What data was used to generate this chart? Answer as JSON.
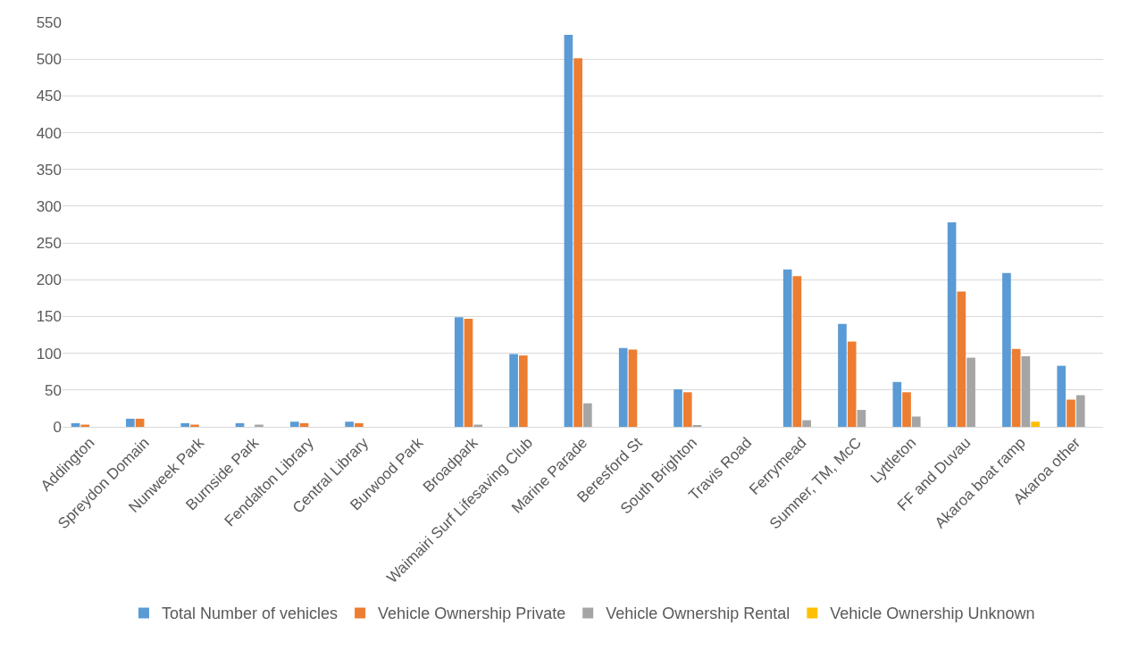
{
  "chart_data": {
    "type": "bar",
    "categories": [
      "Addington",
      "Spreydon Domain",
      "Nunweek Park",
      "Burnside Park",
      "Fendalton Library",
      "Central Library",
      "Burwood Park",
      "Broadpark",
      "Waimairi Surf Lifesaving Club",
      "Marine Parade",
      "Beresford St",
      "South Brighton",
      "Travis Road",
      "Ferrymead",
      "Sumner, TM, McC",
      "Lyttleton",
      "FF and Duvau",
      "Akaroa boat ramp",
      "Akaroa other"
    ],
    "series": [
      {
        "name": "Total Number of vehicles",
        "color": "#5b9bd5",
        "values": [
          5,
          11,
          5,
          5,
          7,
          7,
          0,
          149,
          99,
          533,
          107,
          51,
          0,
          214,
          140,
          61,
          278,
          209,
          83
        ]
      },
      {
        "name": "Vehicle Ownership Private",
        "color": "#ed7d31",
        "values": [
          3,
          11,
          3,
          0,
          5,
          5,
          0,
          147,
          97,
          501,
          105,
          47,
          0,
          205,
          116,
          47,
          184,
          106,
          37
        ]
      },
      {
        "name": "Vehicle Ownership Rental",
        "color": "#a5a5a5",
        "values": [
          0,
          0,
          0,
          3,
          0,
          0,
          0,
          3,
          0,
          32,
          0,
          2,
          0,
          9,
          23,
          14,
          94,
          96,
          43
        ]
      },
      {
        "name": "Vehicle Ownership Unknown",
        "color": "#ffc000",
        "values": [
          0,
          0,
          0,
          0,
          0,
          0,
          0,
          0,
          0,
          0,
          0,
          0,
          0,
          0,
          0,
          0,
          0,
          7,
          0
        ]
      }
    ],
    "ylim": [
      0,
      550
    ],
    "yticks": [
      0,
      50,
      100,
      150,
      200,
      250,
      300,
      350,
      400,
      450,
      500,
      550
    ],
    "grid": "y",
    "legend": "bottom"
  }
}
